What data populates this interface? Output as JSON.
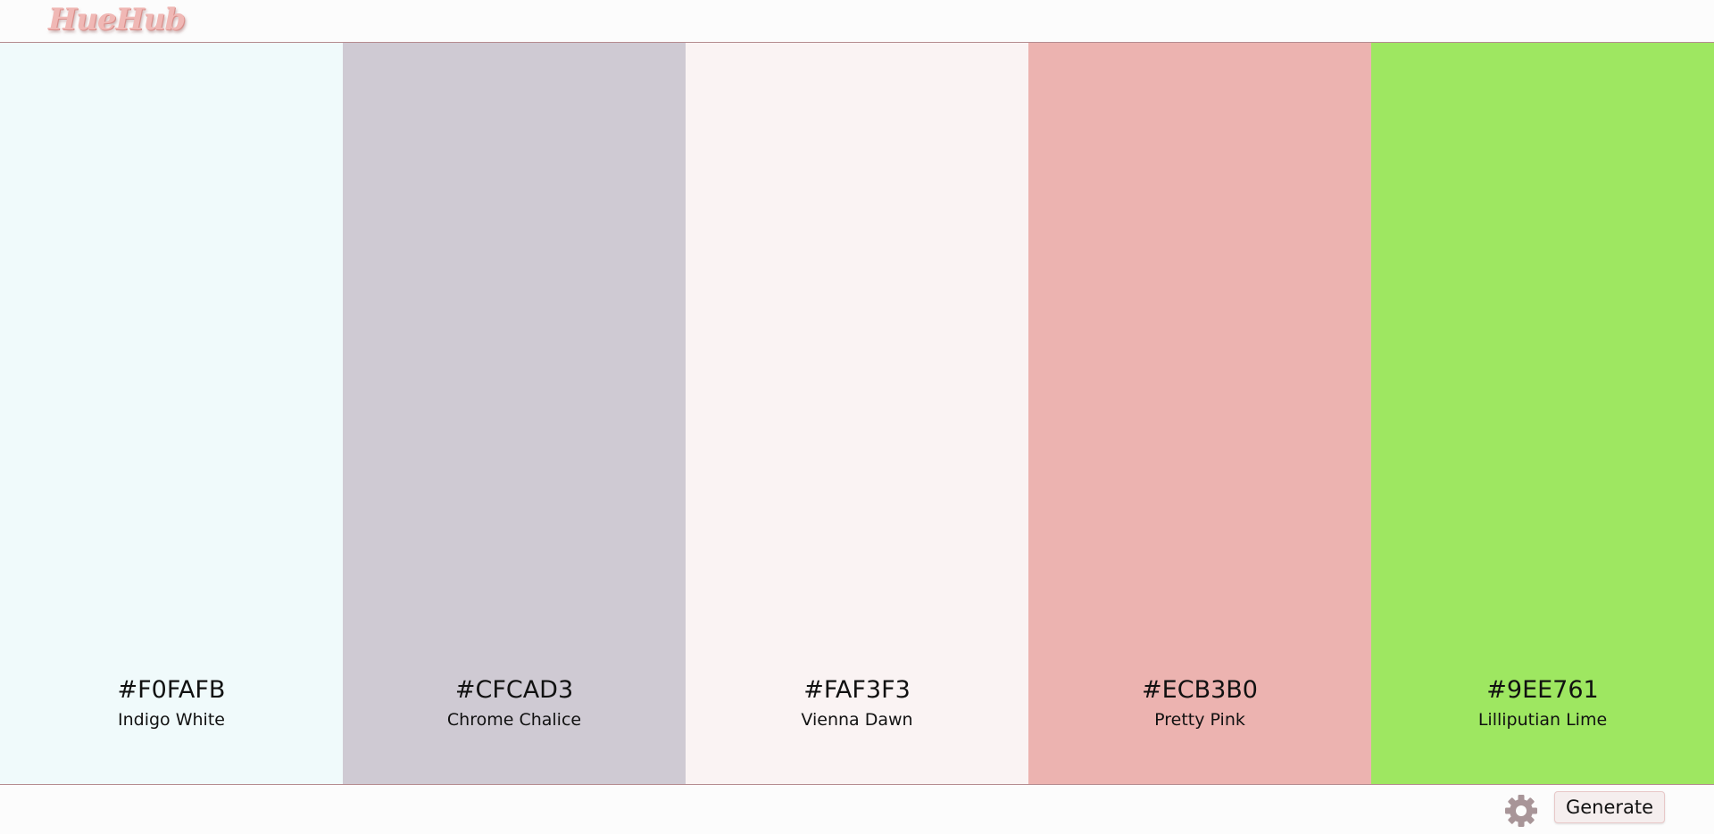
{
  "header": {
    "logo_text": "HueHub",
    "accent_color": "#f0b8b5"
  },
  "palette": [
    {
      "hex": "#F0FAFB",
      "name": "Indigo White",
      "color": "#F0FAFB"
    },
    {
      "hex": "#CFCAD3",
      "name": "Chrome Chalice",
      "color": "#CFCAD3"
    },
    {
      "hex": "#FAF3F3",
      "name": "Vienna Dawn",
      "color": "#FAF3F3"
    },
    {
      "hex": "#ECB3B0",
      "name": "Pretty Pink",
      "color": "#ECB3B0"
    },
    {
      "hex": "#9EE761",
      "name": "Lilliputian Lime",
      "color": "#9EE761"
    }
  ],
  "footer": {
    "settings_icon": "gear-icon",
    "settings_color": "#a89598",
    "generate_label": "Generate"
  }
}
